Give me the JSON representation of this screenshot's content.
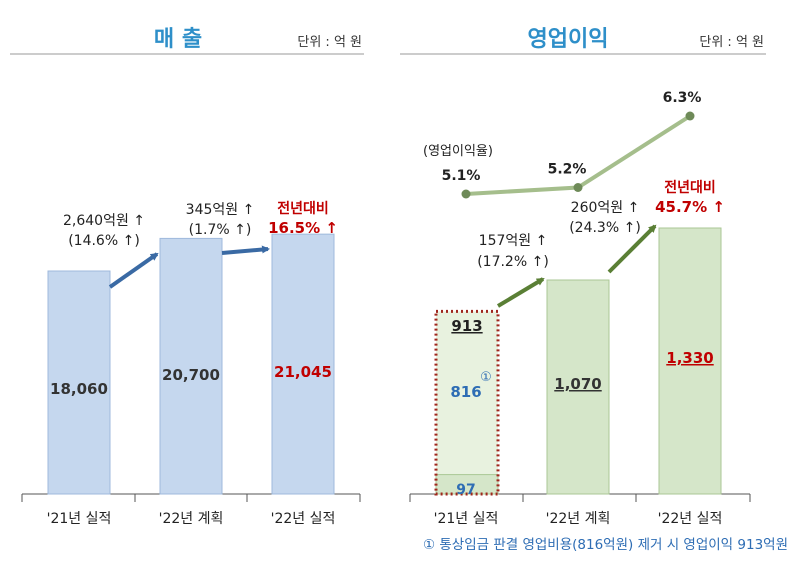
{
  "chart_data": [
    {
      "type": "bar",
      "title": "매 출",
      "unit": "단위 : 억 원",
      "categories": [
        "'21년 실적",
        "'22년 계획",
        "'22년 실적"
      ],
      "values": [
        18060,
        20700,
        21045
      ],
      "value_labels": [
        "18,060",
        "20,700",
        "21,045"
      ],
      "ylim": [
        0,
        23000
      ],
      "annotations": [
        {
          "line1": "2,640억원 ↑",
          "line2": "(14.6% ↑)"
        },
        {
          "line1": "345억원 ↑",
          "line2": "(1.7% ↑)"
        }
      ],
      "yoy": {
        "label": "전년대비",
        "value": "16.5% ↑"
      },
      "colors": {
        "bar": "#c5d7ee",
        "bar_border": "#9fb9dc",
        "arrow": "#3a6aa4",
        "highlight": "#c00000",
        "title": "#2e8fc9"
      }
    },
    {
      "type": "bar",
      "title": "영업이익",
      "unit": "단위 : 억 원",
      "categories": [
        "'21년 실적",
        "'22년 계획",
        "'22년 실적"
      ],
      "values": [
        97,
        1070,
        1330
      ],
      "value_labels": [
        "97",
        "1,070",
        "1,330"
      ],
      "adjusted": {
        "total": 913,
        "total_label": "913",
        "addition": 816,
        "addition_label": "816",
        "marker": "①"
      },
      "ylim": [
        0,
        1500
      ],
      "annotations": [
        {
          "line1": "157억원 ↑",
          "line2": "(17.2% ↑)"
        },
        {
          "line1": "260억원 ↑",
          "line2": "(24.3% ↑)"
        }
      ],
      "yoy": {
        "label": "전년대비",
        "value": "45.7% ↑"
      },
      "margin_series": {
        "name": "(영업이익율)",
        "values": [
          5.1,
          5.2,
          6.3
        ],
        "labels": [
          "5.1%",
          "5.2%",
          "6.3%"
        ]
      },
      "footnote": "① 통상임금 판결 영업비용(816억원) 제거 시 영업이익 913억원",
      "colors": {
        "bar": "#d5e6c9",
        "bar_border": "#aac795",
        "bar_light": "#e8f2df",
        "arrow": "#5a7f35",
        "line": "#a5be8c",
        "marker": "#6e8a58",
        "dotted_box": "#a0281e",
        "highlight": "#c00000",
        "value_blue": "#2e6db4",
        "title": "#2e8fc9"
      }
    }
  ]
}
